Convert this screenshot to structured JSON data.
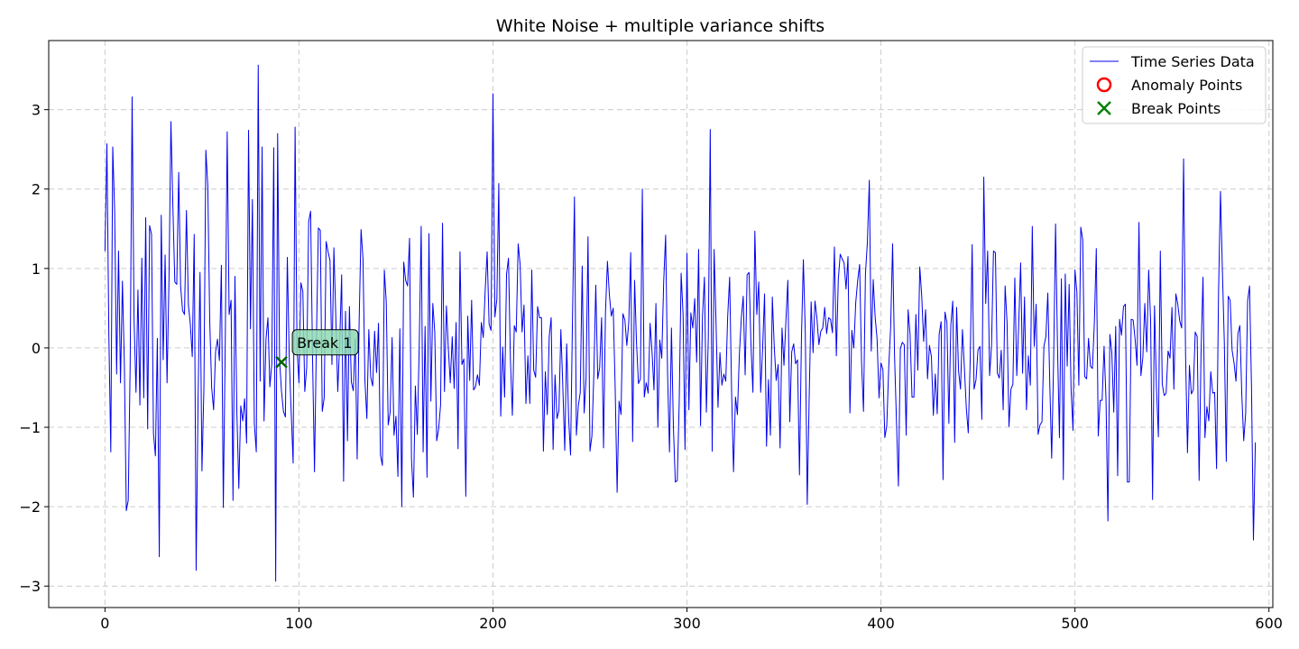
{
  "chart_data": {
    "type": "line",
    "title": "White Noise + multiple variance shifts",
    "xlabel": "",
    "ylabel": "",
    "xlim": [
      -29,
      602
    ],
    "ylim": [
      -3.27,
      3.87
    ],
    "xticks": [
      0,
      100,
      200,
      300,
      400,
      500,
      600
    ],
    "yticks": [
      -3,
      -2,
      -1,
      0,
      1,
      2,
      3
    ],
    "grid": true,
    "legend_position": "top-right",
    "legend": [
      {
        "label": "Time Series Data",
        "marker": "line",
        "color": "#0000ee"
      },
      {
        "label": "Anomaly Points",
        "marker": "circle",
        "color": "#ff0000"
      },
      {
        "label": "Break Points",
        "marker": "x",
        "color": "#008000"
      }
    ],
    "series": [
      {
        "name": "Time Series Data",
        "color": "#0000ee",
        "y": [
          1.22,
          2.57,
          0.17,
          -1.31,
          2.53,
          1.71,
          -0.33,
          1.22,
          -0.44,
          0.84,
          -0.21,
          -2.05,
          -1.92,
          -0.2,
          3.16,
          0.36,
          -0.56,
          0.73,
          -0.72,
          1.13,
          -0.63,
          1.64,
          -1.02,
          1.54,
          1.43,
          -1.08,
          -1.36,
          0.12,
          -2.63,
          1.67,
          -0.15,
          1.17,
          -0.44,
          0.86,
          2.85,
          1.79,
          0.83,
          0.8,
          2.21,
          0.77,
          0.47,
          0.42,
          1.73,
          0.54,
          0.3,
          -0.11,
          1.43,
          -2.8,
          -0.64,
          0.95,
          -1.55,
          -0.51,
          2.49,
          2.04,
          0.34,
          -0.5,
          -0.78,
          -0.05,
          0.11,
          -0.16,
          1.04,
          -2.01,
          0.06,
          2.72,
          0.42,
          0.6,
          -1.92,
          0.9,
          -0.82,
          -1.77,
          -0.73,
          -0.92,
          -0.64,
          -1.2,
          2.74,
          0.24,
          1.87,
          -0.96,
          -1.31,
          3.56,
          -0.42,
          2.53,
          -0.92,
          0.11,
          0.38,
          -0.49,
          -0.2,
          2.52,
          -2.94,
          2.7,
          -0.16,
          -0.55,
          -0.8,
          -0.87,
          1.14,
          -0.14,
          -0.82,
          -1.45,
          2.78,
          -0.01,
          -0.44,
          0.82,
          0.71,
          -0.55,
          -0.24,
          1.59,
          1.72,
          -0.12,
          -1.56,
          0.11,
          1.51,
          1.48,
          -0.8,
          -0.63,
          1.34,
          1.21,
          1.1,
          -0.21,
          1.26,
          0.38,
          -0.55,
          0.07,
          0.92,
          -1.68,
          0.46,
          -1.17,
          0.52,
          -0.43,
          -0.54,
          0.12,
          -1.4,
          0.31,
          1.49,
          1.12,
          -0.41,
          -0.89,
          0.23,
          -0.37,
          -0.48,
          0.21,
          -0.31,
          0.31,
          -1.35,
          -1.48,
          0.98,
          0.58,
          -0.97,
          -0.81,
          0.13,
          -1.1,
          -0.86,
          -1.62,
          0.24,
          -2.0,
          1.08,
          0.85,
          0.78,
          1.38,
          -1.4,
          -1.88,
          -0.48,
          -1.09,
          0.04,
          1.53,
          -1.31,
          0.27,
          -1.63,
          1.44,
          -0.67,
          0.56,
          0.2,
          -1.17,
          -1.02,
          -0.72,
          1.57,
          -0.55,
          0.53,
          -0.01,
          -0.44,
          0.14,
          -0.51,
          0.32,
          -1.27,
          1.21,
          -0.21,
          -0.14,
          -1.87,
          0.4,
          -0.41,
          0.6,
          -0.53,
          -0.49,
          -0.34,
          -0.47,
          0.32,
          0.13,
          0.73,
          1.21,
          0.3,
          0.22,
          3.2,
          0.39,
          0.61,
          2.07,
          -0.86,
          0.01,
          -0.62,
          0.93,
          1.13,
          -0.15,
          -0.85,
          0.28,
          0.2,
          1.31,
          1.05,
          0.2,
          0.54,
          -0.7,
          -0.1,
          -0.7,
          0.98,
          -0.28,
          -0.37,
          0.52,
          0.38,
          0.38,
          -1.3,
          -0.3,
          -0.84,
          0.14,
          0.38,
          -1.28,
          -0.34,
          -0.89,
          -0.79,
          0.23,
          -0.48,
          -1.29,
          0.05,
          -0.89,
          -1.35,
          0.39,
          1.9,
          -1.1,
          -0.73,
          -0.56,
          1.03,
          -0.82,
          -0.38,
          1.4,
          -1.3,
          -1.11,
          -0.33,
          0.79,
          -0.39,
          -0.25,
          0.38,
          -1.26,
          0.45,
          1.09,
          0.67,
          0.4,
          0.5,
          -0.51,
          -1.82,
          -0.67,
          -0.84,
          0.43,
          0.35,
          0.03,
          0.32,
          1.2,
          -1.18,
          0.85,
          0.06,
          -0.45,
          -0.39,
          2.0,
          -0.62,
          -0.44,
          -0.57,
          0.31,
          -0.05,
          -0.53,
          0.56,
          -1.0,
          0.1,
          -0.13,
          0.83,
          1.42,
          -0.32,
          -1.31,
          0.25,
          -0.99,
          -1.69,
          -1.67,
          -0.69,
          0.94,
          0.42,
          -1.28,
          1.19,
          -0.78,
          0.44,
          0.25,
          0.62,
          -0.18,
          1.24,
          -0.98,
          0.4,
          0.89,
          -0.81,
          0.11,
          2.75,
          -1.3,
          1.24,
          0.3,
          -0.75,
          -0.06,
          -0.47,
          -0.33,
          -0.42,
          0.4,
          0.89,
          -0.54,
          -1.56,
          -0.62,
          -0.84,
          -0.09,
          0.37,
          0.65,
          -0.34,
          0.92,
          0.95,
          0.03,
          -0.56,
          1.47,
          0.42,
          0.83,
          -0.56,
          -0.01,
          0.68,
          -1.24,
          -0.4,
          -1.1,
          0.64,
          0.01,
          -0.41,
          -0.21,
          -1.26,
          0.25,
          -0.22,
          0.34,
          0.85,
          -0.93,
          -0.05,
          0.05,
          -0.2,
          -0.15,
          -1.6,
          0.11,
          1.11,
          0.19,
          -1.97,
          -0.62,
          0.58,
          -0.06,
          0.59,
          0.37,
          0.04,
          0.21,
          0.25,
          0.51,
          0.18,
          0.38,
          0.36,
          0.19,
          1.27,
          -0.1,
          0.86,
          1.18,
          1.12,
          1.07,
          0.74,
          1.15,
          -0.82,
          0.22,
          0.0,
          0.57,
          0.85,
          1.05,
          -0.18,
          -0.8,
          0.93,
          1.33,
          2.11,
          -0.04,
          0.86,
          0.39,
          0.11,
          -0.63,
          -0.19,
          -0.27,
          -1.13,
          -0.98,
          -0.25,
          0.26,
          1.31,
          -0.1,
          -0.93,
          -1.74,
          -0.01,
          0.07,
          0.04,
          -1.1,
          0.48,
          0.17,
          -0.62,
          -0.62,
          0.42,
          -0.28,
          1.02,
          0.66,
          0.08,
          0.48,
          -0.39,
          0.03,
          -0.11,
          -0.85,
          -0.33,
          -0.83,
          0.17,
          0.33,
          -1.66,
          0.45,
          0.32,
          -0.95,
          0.28,
          0.59,
          -1.19,
          0.51,
          -0.29,
          -0.52,
          0.23,
          -0.25,
          -0.76,
          -1.07,
          -0.15,
          1.3,
          -0.52,
          -0.4,
          -0.03,
          0.02,
          -0.9,
          2.15,
          0.56,
          1.22,
          -0.35,
          0.03,
          1.22,
          1.2,
          -0.32,
          -0.38,
          -0.03,
          -0.78,
          0.78,
          0.32,
          -0.99,
          -0.52,
          -0.46,
          0.88,
          -0.35,
          0.29,
          1.07,
          -0.32,
          0.64,
          -0.78,
          -0.1,
          -0.47,
          1.53,
          0.02,
          0.55,
          -1.09,
          -0.97,
          -0.93,
          0.02,
          0.14,
          0.69,
          -0.43,
          -1.39,
          -0.17,
          1.56,
          0.02,
          -1.13,
          0.87,
          -1.66,
          0.93,
          -0.23,
          0.8,
          -0.52,
          -1.04,
          0.98,
          0.7,
          -0.47,
          1.52,
          1.36,
          -0.36,
          -0.39,
          0.12,
          -0.23,
          -0.26,
          0.32,
          1.25,
          -1.11,
          -0.66,
          -0.66,
          0.02,
          -0.64,
          -2.18,
          0.17,
          -0.06,
          -0.81,
          0.27,
          -1.61,
          0.36,
          0.16,
          0.52,
          0.55,
          -1.69,
          -1.69,
          0.36,
          0.35,
          0.11,
          -0.22,
          1.58,
          -0.35,
          -0.12,
          0.56,
          -0.05,
          0.98,
          0.34,
          -1.91,
          0.53,
          -0.49,
          -1.12,
          1.22,
          -0.46,
          -0.6,
          -0.57,
          -0.04,
          -0.13,
          0.51,
          -0.52,
          0.68,
          0.55,
          0.34,
          0.25,
          2.38,
          -0.07,
          -1.32,
          -0.22,
          -0.58,
          -0.53,
          0.2,
          0.14,
          -1.67,
          -0.05,
          0.89,
          -1.13,
          -0.74,
          -0.92,
          -0.3,
          -0.57,
          -0.56,
          -1.52,
          0.68,
          1.97,
          0.97,
          0.06,
          -1.43,
          0.65,
          0.6,
          -0.03,
          -0.19,
          -0.42,
          0.18,
          0.28,
          -0.59,
          -1.17,
          -0.82,
          0.59,
          0.78,
          -0.49,
          -2.42,
          -1.19
        ]
      }
    ],
    "break_points": [
      {
        "x": 91,
        "y": -0.18,
        "label": "Break 1"
      }
    ],
    "anomaly_points": []
  }
}
